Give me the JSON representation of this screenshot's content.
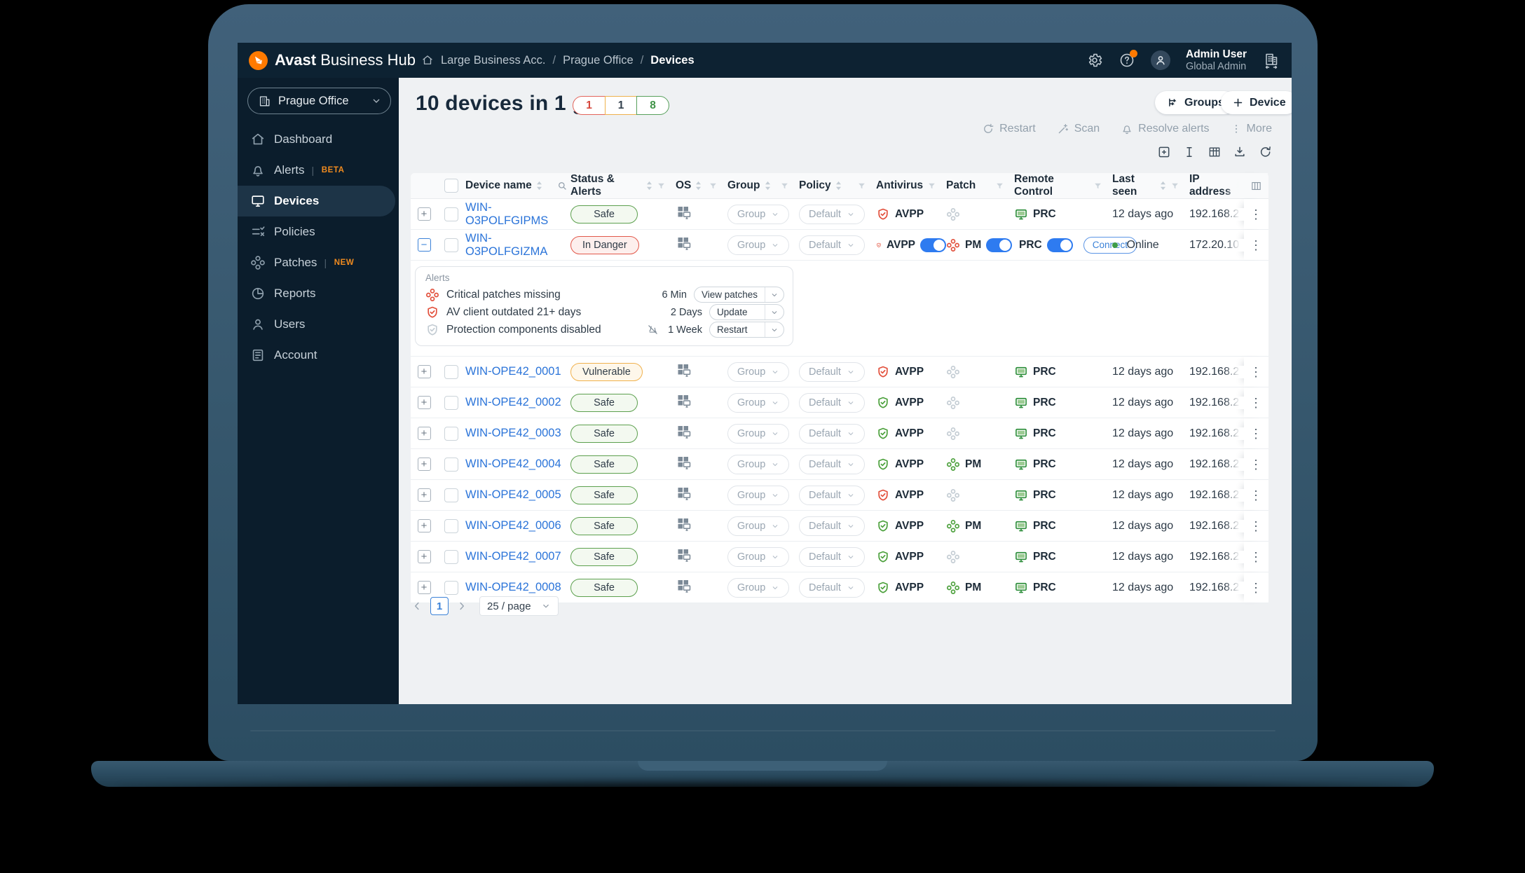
{
  "topbar": {
    "brand_bold": "Avast",
    "brand_light": "Business Hub",
    "breadcrumb": {
      "items": [
        "Large Business Acc.",
        "Prague Office",
        "Devices"
      ],
      "sep": "/"
    },
    "user": {
      "name": "Admin User",
      "role": "Global Admin"
    }
  },
  "sidebar": {
    "org": "Prague Office",
    "items": [
      {
        "label": "Dashboard",
        "icon": "home",
        "badge": "",
        "active": false
      },
      {
        "label": "Alerts",
        "icon": "bell",
        "badge": "BETA",
        "active": false
      },
      {
        "label": "Devices",
        "icon": "monitor",
        "badge": "",
        "active": true
      },
      {
        "label": "Policies",
        "icon": "policies",
        "badge": "",
        "active": false
      },
      {
        "label": "Patches",
        "icon": "patch",
        "badge": "NEW",
        "active": false
      },
      {
        "label": "Reports",
        "icon": "report",
        "badge": "",
        "active": false
      },
      {
        "label": "Users",
        "icon": "user",
        "badge": "",
        "active": false
      },
      {
        "label": "Account",
        "icon": "account",
        "badge": "",
        "active": false
      }
    ],
    "collapse_icon": "chevrons-left"
  },
  "page": {
    "title": "10 devices in 1 group",
    "counts": [
      {
        "value": "1",
        "type": "danger"
      },
      {
        "value": "1",
        "type": "warn"
      },
      {
        "value": "8",
        "type": "safe"
      }
    ],
    "groups_button": "Groups",
    "device_button": "Device",
    "toolbar": [
      "Restart",
      "Scan",
      "Resolve alerts",
      "More"
    ],
    "table_tools": [
      "expand-all",
      "row-height",
      "columns-grid",
      "export-download",
      "refresh"
    ]
  },
  "table": {
    "headers": {
      "device": "Device name",
      "status": "Status & Alerts",
      "os": "OS",
      "group": "Group",
      "policy": "Policy",
      "antivirus": "Antivirus",
      "patch": "Patch",
      "remote": "Remote Control",
      "last_seen": "Last seen",
      "ip": "IP address"
    },
    "rows": [
      {
        "name": "WIN-O3POLFGIPMS",
        "status": "Safe",
        "status_type": "safe",
        "group": "Group",
        "policy": "Default",
        "av": "AVPP",
        "av_state": "red",
        "av_toggle": false,
        "patch_label": "",
        "patch_state": "gray",
        "patch_toggle": false,
        "rc": "PRC",
        "rc_toggle": false,
        "connect": "",
        "last_seen": "12 days ago",
        "online": false,
        "ip": "192.168.2",
        "expanded": false
      },
      {
        "name": "WIN-O3POLFGIZMA",
        "status": "In Danger",
        "status_type": "danger",
        "group": "Group",
        "policy": "Default",
        "av": "AVPP",
        "av_state": "red",
        "av_toggle": true,
        "patch_label": "PM",
        "patch_state": "red",
        "patch_toggle": true,
        "rc": "PRC",
        "rc_toggle": true,
        "connect": "Connect",
        "last_seen": "Online",
        "online": true,
        "ip": "172.20.10",
        "expanded": true
      },
      {
        "name": "WIN-OPE42_0001",
        "status": "Vulnerable",
        "status_type": "warn",
        "group": "Group",
        "policy": "Default",
        "av": "AVPP",
        "av_state": "red",
        "av_toggle": false,
        "patch_label": "",
        "patch_state": "gray",
        "patch_toggle": false,
        "rc": "PRC",
        "rc_toggle": false,
        "connect": "",
        "last_seen": "12 days ago",
        "online": false,
        "ip": "192.168.2",
        "expanded": false
      },
      {
        "name": "WIN-OPE42_0002",
        "status": "Safe",
        "status_type": "safe",
        "group": "Group",
        "policy": "Default",
        "av": "AVPP",
        "av_state": "green",
        "av_toggle": false,
        "patch_label": "",
        "patch_state": "gray",
        "patch_toggle": false,
        "rc": "PRC",
        "rc_toggle": false,
        "connect": "",
        "last_seen": "12 days ago",
        "online": false,
        "ip": "192.168.2",
        "expanded": false
      },
      {
        "name": "WIN-OPE42_0003",
        "status": "Safe",
        "status_type": "safe",
        "group": "Group",
        "policy": "Default",
        "av": "AVPP",
        "av_state": "green",
        "av_toggle": false,
        "patch_label": "",
        "patch_state": "gray",
        "patch_toggle": false,
        "rc": "PRC",
        "rc_toggle": false,
        "connect": "",
        "last_seen": "12 days ago",
        "online": false,
        "ip": "192.168.2",
        "expanded": false
      },
      {
        "name": "WIN-OPE42_0004",
        "status": "Safe",
        "status_type": "safe",
        "group": "Group",
        "policy": "Default",
        "av": "AVPP",
        "av_state": "green",
        "av_toggle": false,
        "patch_label": "PM",
        "patch_state": "green",
        "patch_toggle": false,
        "rc": "PRC",
        "rc_toggle": false,
        "connect": "",
        "last_seen": "12 days ago",
        "online": false,
        "ip": "192.168.2",
        "expanded": false
      },
      {
        "name": "WIN-OPE42_0005",
        "status": "Safe",
        "status_type": "safe",
        "group": "Group",
        "policy": "Default",
        "av": "AVPP",
        "av_state": "red",
        "av_toggle": false,
        "patch_label": "",
        "patch_state": "gray",
        "patch_toggle": false,
        "rc": "PRC",
        "rc_toggle": false,
        "connect": "",
        "last_seen": "12 days ago",
        "online": false,
        "ip": "192.168.2",
        "expanded": false
      },
      {
        "name": "WIN-OPE42_0006",
        "status": "Safe",
        "status_type": "safe",
        "group": "Group",
        "policy": "Default",
        "av": "AVPP",
        "av_state": "green",
        "av_toggle": false,
        "patch_label": "PM",
        "patch_state": "green",
        "patch_toggle": false,
        "rc": "PRC",
        "rc_toggle": false,
        "connect": "",
        "last_seen": "12 days ago",
        "online": false,
        "ip": "192.168.2",
        "expanded": false
      },
      {
        "name": "WIN-OPE42_0007",
        "status": "Safe",
        "status_type": "safe",
        "group": "Group",
        "policy": "Default",
        "av": "AVPP",
        "av_state": "green",
        "av_toggle": false,
        "patch_label": "",
        "patch_state": "gray",
        "patch_toggle": false,
        "rc": "PRC",
        "rc_toggle": false,
        "connect": "",
        "last_seen": "12 days ago",
        "online": false,
        "ip": "192.168.2",
        "expanded": false
      },
      {
        "name": "WIN-OPE42_0008",
        "status": "Safe",
        "status_type": "safe",
        "group": "Group",
        "policy": "Default",
        "av": "AVPP",
        "av_state": "green",
        "av_toggle": false,
        "patch_label": "PM",
        "patch_state": "green",
        "patch_toggle": false,
        "rc": "PRC",
        "rc_toggle": false,
        "connect": "",
        "last_seen": "12 days ago",
        "online": false,
        "ip": "192.168.2",
        "expanded": false
      }
    ]
  },
  "alerts_panel": {
    "title": "Alerts",
    "items": [
      {
        "icon": "patch",
        "tone": "red",
        "text": "Critical patches missing",
        "age": "6 Min",
        "action": "View patches",
        "muted": false
      },
      {
        "icon": "shield",
        "tone": "red",
        "text": "AV client outdated 21+ days",
        "age": "2 Days",
        "action": "Update",
        "muted": false
      },
      {
        "icon": "shield",
        "tone": "gray",
        "text": "Protection components disabled",
        "age": "1 Week",
        "action": "Restart",
        "muted": true
      }
    ]
  },
  "pagination": {
    "page": "1",
    "size": "25 / page"
  }
}
